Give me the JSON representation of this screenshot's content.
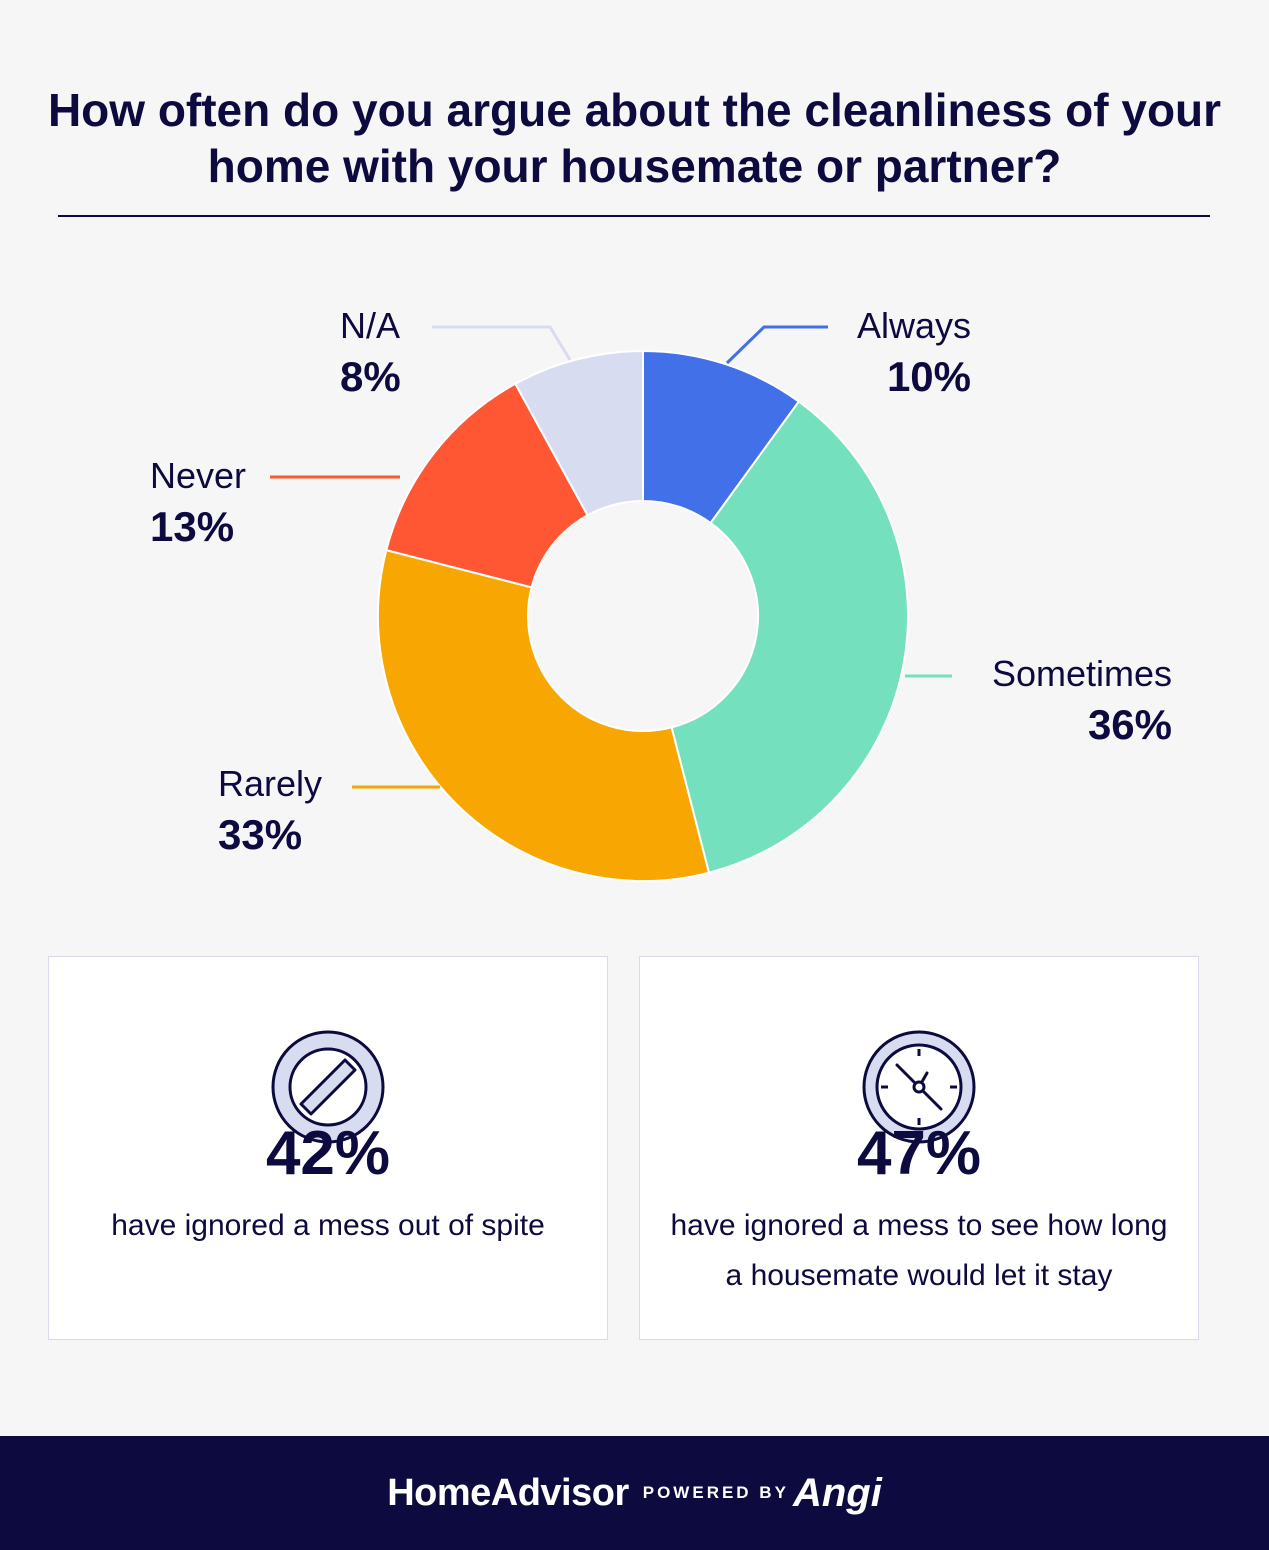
{
  "chart_data": {
    "type": "pie",
    "title": "How often do you argue about the cleanliness of your home with your housemate or partner?",
    "slices": [
      {
        "name": "Always",
        "value": 10,
        "label": "10%",
        "color": "#4170e8"
      },
      {
        "name": "Sometimes",
        "value": 36,
        "label": "36%",
        "color": "#75e0bd"
      },
      {
        "name": "Rarely",
        "value": 33,
        "label": "33%",
        "color": "#f8a601"
      },
      {
        "name": "Never",
        "value": 13,
        "label": "13%",
        "color": "#ff5733"
      },
      {
        "name": "N/A",
        "value": 8,
        "label": "8%",
        "color": "#d8dcf1"
      }
    ]
  },
  "stats": [
    {
      "value": "42%",
      "text": "have ignored a mess out of spite",
      "icon": "prohibited-icon"
    },
    {
      "value": "47%",
      "text": "have ignored a mess to see how long a housemate would let it stay",
      "icon": "clock-icon"
    }
  ],
  "footer": {
    "brand": "HomeAdvisor",
    "powered_by": "POWERED BY",
    "partner": "Angi"
  },
  "colors": {
    "navy": "#0c0a3e",
    "background": "#f6f6f7",
    "icon_fill": "#d8dcf1"
  }
}
